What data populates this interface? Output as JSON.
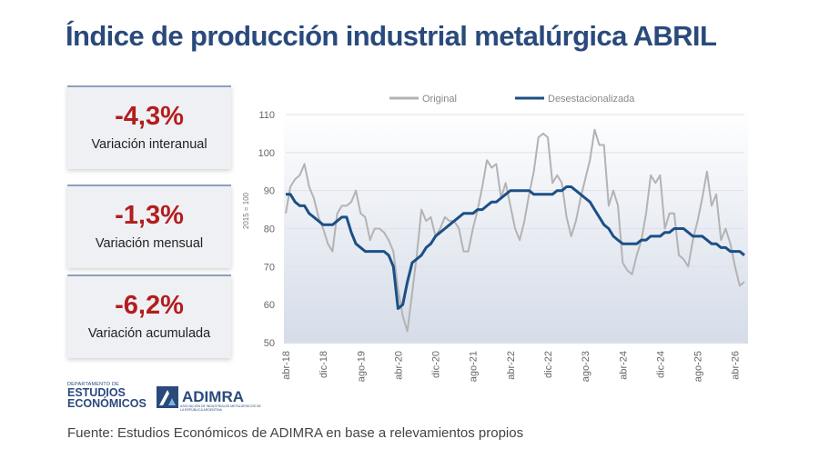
{
  "title": "Índice de producción industrial metalúrgica ABRIL",
  "cards": [
    {
      "value": "-4,3%",
      "label": "Variación interanual"
    },
    {
      "value": "-1,3%",
      "label": "Variación mensual"
    },
    {
      "value": "-6,2%",
      "label": "Variación acumulada"
    }
  ],
  "logos": {
    "dept_small": "DEPARTAMENTO DE",
    "dept_line1": "ESTUDIOS",
    "dept_line2": "ECONÓMICOS",
    "adimra": "ADIMRA",
    "adimra_sub": "ASOCIACIÓN DE INDUSTRIALES METALÚRGICOS DE LA REPÚBLICA ARGENTINA"
  },
  "source": "Fuente: Estudios Económicos de ADIMRA en base a relevamientos propios",
  "colors": {
    "title": "#2a4a7c",
    "original": "#b3b3b3",
    "desestacionalizada": "#1d4f86",
    "negative": "#b31d1d"
  },
  "chart_data": {
    "type": "line",
    "ylabel": "2015 = 100",
    "ylim": [
      50,
      110
    ],
    "yticks": [
      50,
      60,
      70,
      80,
      90,
      100,
      110
    ],
    "xtick_labels": [
      "abr-18",
      "dic-18",
      "ago-19",
      "abr-20",
      "dic-20",
      "ago-21",
      "abr-22",
      "dic-22",
      "ago-23",
      "abr-24",
      "dic-24",
      "ago-25",
      "abr-26"
    ],
    "x_start": "abr-18",
    "x_end": "abr-26",
    "legend_position": "top",
    "grid": true,
    "series": [
      {
        "name": "Original",
        "color": "#b3b3b3",
        "values": [
          84,
          91,
          93,
          94,
          97,
          91,
          88,
          83,
          80,
          76,
          74,
          84,
          86,
          86,
          87,
          90,
          84,
          83,
          77,
          80,
          80,
          79,
          77,
          74,
          64,
          57,
          53,
          63,
          73,
          85,
          82,
          83,
          78,
          80,
          83,
          82,
          82,
          80,
          74,
          74,
          80,
          85,
          91,
          98,
          96,
          97,
          88,
          92,
          86,
          80,
          77,
          82,
          89,
          95,
          104,
          105,
          104,
          92,
          94,
          92,
          83,
          78,
          82,
          88,
          93,
          98,
          106,
          102,
          102,
          86,
          90,
          86,
          71,
          69,
          68,
          73,
          77,
          84,
          94,
          92,
          94,
          80,
          84,
          84,
          73,
          72,
          70,
          77,
          82,
          88,
          95,
          86,
          89,
          77,
          80,
          76,
          70,
          65,
          66
        ]
      },
      {
        "name": "Desestacionalizada",
        "color": "#1d4f86",
        "values": [
          89,
          89,
          87,
          86,
          86,
          84,
          83,
          82,
          81,
          81,
          81,
          82,
          83,
          83,
          79,
          76,
          75,
          74,
          74,
          74,
          74,
          74,
          73,
          70,
          59,
          60,
          66,
          71,
          72,
          73,
          75,
          76,
          78,
          79,
          80,
          81,
          82,
          83,
          84,
          84,
          84,
          85,
          85,
          86,
          87,
          87,
          88,
          89,
          90,
          90,
          90,
          90,
          90,
          89,
          89,
          89,
          89,
          89,
          90,
          90,
          91,
          91,
          90,
          89,
          88,
          87,
          85,
          83,
          81,
          80,
          78,
          77,
          76,
          76,
          76,
          76,
          77,
          77,
          78,
          78,
          78,
          79,
          79,
          80,
          80,
          80,
          79,
          78,
          78,
          78,
          77,
          76,
          76,
          75,
          75,
          74,
          74,
          74,
          73
        ]
      }
    ]
  }
}
